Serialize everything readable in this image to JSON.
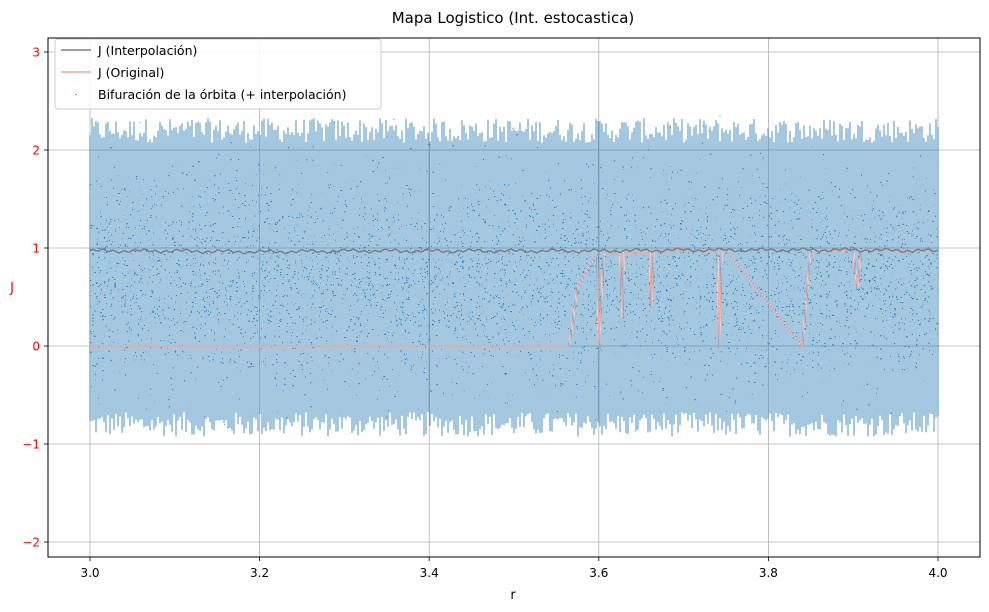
{
  "chart_data": {
    "type": "scatter",
    "title": "Mapa Logistico (Int. estocastica)",
    "xlabel": "r",
    "ylabel": "J",
    "xlim": [
      3.0,
      4.0
    ],
    "ylim": [
      -2.0,
      3.0
    ],
    "x_ticks": [
      "3.0",
      "3.2",
      "3.4",
      "3.6",
      "3.8",
      "4.0"
    ],
    "y_ticks": [
      "−2",
      "−1",
      "0",
      "1",
      "2",
      "3"
    ],
    "grid": true,
    "legend_position": "top-left",
    "colors": {
      "interpolated": "#808080",
      "original": "#f4a79a",
      "scatter": "#1f77b4",
      "y_tick_labels": "#ff0000",
      "y_label": "#ff0000"
    },
    "series": [
      {
        "name": "J (Interpolación)",
        "kind": "line",
        "x": [
          3.0,
          3.1,
          3.2,
          3.3,
          3.4,
          3.5,
          3.6,
          3.7,
          3.8,
          3.9,
          4.0
        ],
        "values": [
          0.97,
          0.97,
          0.96,
          0.97,
          0.97,
          0.97,
          0.97,
          0.98,
          0.98,
          0.98,
          0.97
        ]
      },
      {
        "name": "J (Original)",
        "kind": "line",
        "x": [
          3.0,
          3.565,
          3.575,
          3.59,
          3.598,
          3.6,
          3.606,
          3.61,
          3.625,
          3.628,
          3.63,
          3.66,
          3.662,
          3.665,
          3.67,
          3.74,
          3.742,
          3.745,
          3.75,
          3.84,
          3.85,
          3.855,
          3.9,
          3.905,
          3.91,
          4.0
        ],
        "values": [
          0.0,
          0.0,
          0.6,
          0.85,
          0.93,
          0.0,
          0.95,
          0.95,
          0.93,
          0.3,
          0.96,
          0.95,
          0.4,
          0.96,
          0.97,
          0.97,
          0.0,
          0.97,
          0.98,
          0.0,
          0.98,
          0.98,
          0.97,
          0.6,
          0.98,
          0.98
        ]
      },
      {
        "name": "Bifuración de la órbita (+ interpolación)",
        "kind": "scatter",
        "r_range": [
          3.0,
          4.0
        ],
        "J_range": [
          -1.95,
          2.9
        ],
        "band_core": [
          -0.8,
          2.2
        ]
      }
    ]
  }
}
